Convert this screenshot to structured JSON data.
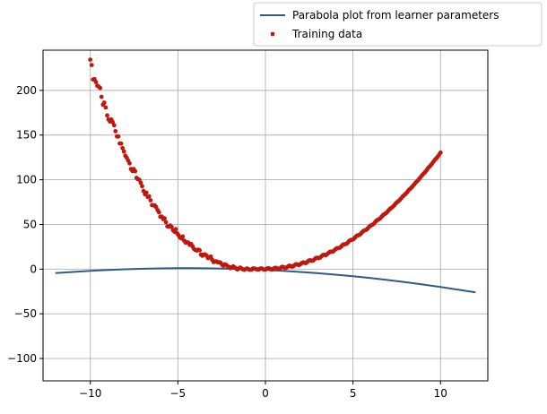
{
  "chart_data": {
    "type": "scatter",
    "xlim": [
      -12.7,
      12.7
    ],
    "ylim": [
      -125,
      245
    ],
    "grid": true,
    "legend_placement": "top-right (above plot)",
    "x_ticks": [
      -10,
      -5,
      0,
      5,
      10
    ],
    "x_tick_labels": [
      "−10",
      "−5",
      "0",
      "5",
      "10"
    ],
    "y_ticks": [
      -100,
      -50,
      0,
      50,
      100,
      150,
      200
    ],
    "y_tick_labels": [
      "−100",
      "−50",
      "0",
      "50",
      "100",
      "150",
      "200"
    ],
    "series": [
      {
        "name": "Parabola plot from learner parameters",
        "kind": "line",
        "color": "#2e5c86",
        "x": [
          -12,
          -11,
          -10,
          -9,
          -8,
          -7,
          -6,
          -5,
          -4,
          -3,
          -2,
          -1,
          0,
          1,
          2,
          3,
          4,
          5,
          6,
          7,
          8,
          9,
          10,
          11,
          12
        ],
        "y": [
          -4.5,
          -3.2,
          -2.0,
          -1.0,
          -0.2,
          0.4,
          0.8,
          1.0,
          1.0,
          0.8,
          0.4,
          -0.2,
          -1.0,
          -2.0,
          -3.2,
          -4.6,
          -6.2,
          -8.0,
          -10.0,
          -12.2,
          -14.6,
          -17.2,
          -20.0,
          -23.0,
          -26.0
        ]
      },
      {
        "name": "Training data",
        "kind": "scatter",
        "color": "#c0170f",
        "x": [
          -10.0,
          -9.92,
          -9.84,
          -9.76,
          -9.68,
          -9.6,
          -9.52,
          -9.44,
          -9.36,
          -9.28,
          -9.2,
          -9.12,
          -9.04,
          -8.96,
          -8.88,
          -8.8,
          -8.72,
          -8.64,
          -8.56,
          -8.48,
          -8.4,
          -8.32,
          -8.24,
          -8.16,
          -8.08,
          -8.0,
          -7.92,
          -7.84,
          -7.76,
          -7.68,
          -7.6,
          -7.52,
          -7.44,
          -7.36,
          -7.28,
          -7.2,
          -7.12,
          -7.04,
          -6.96,
          -6.88,
          -6.8,
          -6.72,
          -6.64,
          -6.56,
          -6.48,
          -6.4,
          -6.32,
          -6.24,
          -6.16,
          -6.08,
          -6.0,
          -5.92,
          -5.84,
          -5.76,
          -5.68,
          -5.6,
          -5.52,
          -5.44,
          -5.36,
          -5.28,
          -5.2,
          -5.12,
          -5.04,
          -4.96,
          -4.88,
          -4.8,
          -4.72,
          -4.64,
          -4.56,
          -4.48,
          -4.4,
          -4.32,
          -4.24,
          -4.16,
          -4.08,
          -4.0,
          -3.92,
          -3.84,
          -3.76,
          -3.68,
          -3.6,
          -3.52,
          -3.44,
          -3.36,
          -3.28,
          -3.2,
          -3.12,
          -3.04,
          -2.96,
          -2.88,
          -2.8,
          -2.72,
          -2.64,
          -2.56,
          -2.48,
          -2.4,
          -2.32,
          -2.24,
          -2.16,
          -2.08,
          -2.0,
          -1.92,
          -1.84,
          -1.76,
          -1.68,
          -1.6,
          -1.52,
          -1.44,
          -1.36,
          -1.28,
          -1.2,
          -1.12,
          -1.04,
          -0.96,
          -0.88,
          -0.8,
          -0.72,
          -0.64,
          -0.56,
          -0.48,
          -0.4,
          -0.32,
          -0.24,
          -0.16,
          -0.08,
          0.0,
          0.08,
          0.16,
          0.24,
          0.32,
          0.4,
          0.48,
          0.56,
          0.64,
          0.72,
          0.8,
          0.88,
          0.96,
          1.04,
          1.12,
          1.2,
          1.28,
          1.36,
          1.44,
          1.52,
          1.6,
          1.68,
          1.76,
          1.84,
          1.92,
          2.0,
          2.08,
          2.16,
          2.24,
          2.32,
          2.4,
          2.48,
          2.56,
          2.64,
          2.72,
          2.8,
          2.88,
          2.96,
          3.04,
          3.12,
          3.2,
          3.28,
          3.36,
          3.44,
          3.52,
          3.6,
          3.68,
          3.76,
          3.84,
          3.92,
          4.0,
          4.08,
          4.16,
          4.24,
          4.32,
          4.4,
          4.48,
          4.56,
          4.64,
          4.72,
          4.8,
          4.88,
          4.96,
          5.04,
          5.12,
          5.2,
          5.28,
          5.36,
          5.44,
          5.52,
          5.6,
          5.68,
          5.76,
          5.84,
          5.92,
          6.0,
          6.08,
          6.16,
          6.24,
          6.32,
          6.4,
          6.48,
          6.56,
          6.64,
          6.72,
          6.8,
          6.88,
          6.96,
          7.04,
          7.12,
          7.2,
          7.28,
          7.36,
          7.44,
          7.52,
          7.6,
          7.68,
          7.76,
          7.84,
          7.92,
          8.0,
          8.08,
          8.16,
          8.24,
          8.32,
          8.4,
          8.48,
          8.56,
          8.64,
          8.72,
          8.8,
          8.88,
          8.96,
          9.04,
          9.12,
          9.2,
          9.28,
          9.36,
          9.44,
          9.52,
          9.6,
          9.68,
          9.76,
          9.84,
          9.92,
          10.0
        ],
        "y": [
          234.4,
          228.4,
          212.2,
          212.6,
          209.4,
          205.2,
          204.2,
          202.7,
          192.8,
          184.0,
          186.3,
          180.9,
          172.0,
          167.5,
          165.2,
          167.4,
          164.5,
          161.0,
          154.4,
          148.4,
          148.4,
          140.6,
          140.5,
          135.4,
          131.6,
          126.9,
          124.8,
          121.6,
          118.4,
          112.0,
          109.8,
          111.9,
          109.5,
          102.1,
          100.7,
          99.9,
          96.5,
          92.8,
          87.4,
          83.8,
          85.6,
          80.8,
          81.5,
          77.0,
          71.6,
          71.3,
          71.3,
          69.4,
          66.0,
          63.6,
          58.6,
          58.8,
          56.0,
          56.9,
          52.6,
          47.9,
          47.6,
          48.8,
          47.3,
          43.7,
          41.9,
          44.7,
          40.0,
          38.0,
          35.4,
          34.4,
          36.5,
          31.9,
          29.6,
          30.1,
          29.6,
          27.1,
          28.1,
          25.4,
          22.6,
          21.5,
          20.8,
          21.7,
          21.1,
          16.2,
          15.0,
          16.3,
          16.5,
          15.1,
          12.4,
          13.2,
          14.1,
          10.6,
          8.0,
          8.6,
          8.7,
          7.6,
          7.7,
          7.2,
          5.0,
          3.8,
          5.4,
          4.8,
          3.2,
          2.4,
          1.0,
          2.2,
          3.0,
          2.0,
          0.6,
          -0.4,
          0.8,
          1.7,
          0.6,
          -0.3,
          -0.8,
          0.2,
          0.6,
          -0.2,
          -0.8,
          -0.6,
          0.6,
          0.6,
          0.1,
          -0.2,
          -0.6,
          0.4,
          0.8,
          0.2,
          -0.6,
          -0.5,
          0.6,
          0.9,
          0.6,
          -0.4,
          -0.4,
          0.8,
          1.4,
          1.1,
          0.2,
          0.3,
          1.6,
          2.5,
          2.1,
          1.2,
          1.6,
          2.9,
          3.8,
          3.4,
          2.7,
          3.3,
          4.8,
          5.6,
          5.0,
          4.6,
          5.6,
          7.0,
          7.6,
          7.0,
          6.9,
          8.2,
          9.6,
          10.0,
          9.4,
          9.6,
          11.0,
          12.5,
          12.8,
          12.3,
          12.9,
          14.4,
          15.8,
          16.0,
          15.6,
          16.6,
          18.1,
          19.4,
          19.6,
          19.5,
          20.7,
          22.3,
          23.4,
          23.5,
          23.8,
          25.2,
          26.9,
          27.8,
          27.9,
          28.5,
          30.1,
          31.8,
          32.6,
          32.8,
          33.7,
          35.4,
          37.1,
          37.8,
          38.2,
          39.4,
          41.2,
          42.8,
          43.4,
          44.1,
          45.5,
          47.3,
          48.7,
          49.4,
          50.3,
          52.0,
          53.8,
          55.0,
          55.8,
          57.0,
          58.8,
          60.5,
          61.6,
          62.6,
          64.0,
          65.9,
          67.5,
          68.6,
          69.9,
          71.5,
          73.4,
          74.9,
          76.1,
          77.6,
          79.4,
          81.3,
          82.8,
          84.1,
          85.8,
          87.8,
          89.5,
          90.9,
          92.5,
          94.4,
          96.4,
          98.0,
          99.5,
          101.4,
          103.4,
          105.3,
          106.9,
          108.6,
          110.6,
          112.8,
          114.5,
          116.2,
          118.2,
          120.4,
          122.4,
          124.0,
          125.9,
          128.1,
          130.4
        ]
      }
    ]
  }
}
